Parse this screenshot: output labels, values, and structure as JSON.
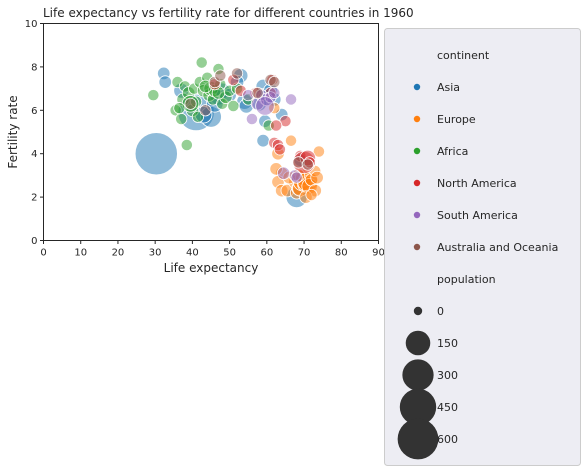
{
  "chart_data": {
    "type": "scatter",
    "title": "Life expectancy vs fertility rate for different countries in 1960",
    "xlabel": "Life expectancy",
    "ylabel": "Fertility rate",
    "xlim": [
      0,
      90
    ],
    "ylim": [
      0,
      10
    ],
    "xticks": [
      "0",
      "10",
      "20",
      "30",
      "40",
      "50",
      "60",
      "70",
      "80",
      "90"
    ],
    "yticks": [
      "0",
      "2",
      "4",
      "6",
      "8",
      "10"
    ],
    "grid": false,
    "legend_placement": "outside-right",
    "legend": {
      "hue_title": "continent",
      "size_title": "population",
      "size_entries": [
        {
          "label": "0",
          "value": 0
        },
        {
          "label": "150",
          "value": 150
        },
        {
          "label": "300",
          "value": 300
        },
        {
          "label": "450",
          "value": 450
        },
        {
          "label": "600",
          "value": 600
        }
      ]
    },
    "colors": {
      "Asia": "#1f77b4",
      "Europe": "#ff7f0e",
      "Africa": "#2ca02c",
      "North America": "#d62728",
      "South America": "#9467bd",
      "Australia and Oceania": "#8c564b"
    },
    "series": [
      {
        "name": "Asia",
        "points": [
          {
            "x": 30.3,
            "y": 4.0,
            "size": 660
          },
          {
            "x": 41.0,
            "y": 5.9,
            "size": 450
          },
          {
            "x": 32.3,
            "y": 7.7,
            "size": 10
          },
          {
            "x": 32.7,
            "y": 7.3,
            "size": 10
          },
          {
            "x": 45.0,
            "y": 5.7,
            "size": 90
          },
          {
            "x": 43.0,
            "y": 5.8,
            "size": 40
          },
          {
            "x": 47.0,
            "y": 6.6,
            "size": 30
          },
          {
            "x": 53.0,
            "y": 7.6,
            "size": 20
          },
          {
            "x": 54.0,
            "y": 6.4,
            "size": 30
          },
          {
            "x": 54.5,
            "y": 6.2,
            "size": 20
          },
          {
            "x": 58.0,
            "y": 6.3,
            "size": 20
          },
          {
            "x": 59.0,
            "y": 7.1,
            "size": 20
          },
          {
            "x": 59.0,
            "y": 6.7,
            "size": 15
          },
          {
            "x": 60.0,
            "y": 6.6,
            "size": 40
          },
          {
            "x": 59.5,
            "y": 5.5,
            "size": 10
          },
          {
            "x": 59.0,
            "y": 4.6,
            "size": 10
          },
          {
            "x": 61.0,
            "y": 6.9,
            "size": 20
          },
          {
            "x": 64.0,
            "y": 5.8,
            "size": 10
          },
          {
            "x": 68.0,
            "y": 2.0,
            "size": 94
          },
          {
            "x": 69.0,
            "y": 3.7,
            "size": 10
          },
          {
            "x": 62.0,
            "y": 6.5,
            "size": 15
          },
          {
            "x": 48.0,
            "y": 6.9,
            "size": 30
          },
          {
            "x": 50.0,
            "y": 6.7,
            "size": 15
          },
          {
            "x": 52.0,
            "y": 7.3,
            "size": 15
          },
          {
            "x": 46.0,
            "y": 6.3,
            "size": 40
          },
          {
            "x": 37.0,
            "y": 6.9,
            "size": 25
          }
        ]
      },
      {
        "name": "Europe",
        "points": [
          {
            "x": 64.0,
            "y": 3.1,
            "size": 10
          },
          {
            "x": 62.5,
            "y": 3.3,
            "size": 10
          },
          {
            "x": 63.0,
            "y": 2.7,
            "size": 10
          },
          {
            "x": 64.0,
            "y": 2.3,
            "size": 10
          },
          {
            "x": 65.5,
            "y": 2.3,
            "size": 10
          },
          {
            "x": 66.5,
            "y": 4.6,
            "size": 5
          },
          {
            "x": 67.5,
            "y": 2.7,
            "size": 10
          },
          {
            "x": 68.0,
            "y": 2.2,
            "size": 10
          },
          {
            "x": 68.5,
            "y": 2.4,
            "size": 15
          },
          {
            "x": 69.0,
            "y": 2.4,
            "size": 30
          },
          {
            "x": 69.5,
            "y": 2.7,
            "size": 50
          },
          {
            "x": 70.0,
            "y": 2.9,
            "size": 40
          },
          {
            "x": 70.5,
            "y": 2.6,
            "size": 40
          },
          {
            "x": 71.0,
            "y": 2.7,
            "size": 80
          },
          {
            "x": 71.5,
            "y": 2.5,
            "size": 30
          },
          {
            "x": 72.0,
            "y": 2.8,
            "size": 10
          },
          {
            "x": 73.0,
            "y": 3.2,
            "size": 5
          },
          {
            "x": 73.5,
            "y": 2.9,
            "size": 10
          },
          {
            "x": 74.0,
            "y": 4.1,
            "size": 5
          },
          {
            "x": 73.0,
            "y": 2.3,
            "size": 10
          },
          {
            "x": 70.5,
            "y": 2.0,
            "size": 10
          },
          {
            "x": 63.0,
            "y": 4.0,
            "size": 10
          },
          {
            "x": 62.0,
            "y": 6.1,
            "size": 5
          },
          {
            "x": 66.0,
            "y": 2.9,
            "size": 10
          },
          {
            "x": 68.5,
            "y": 3.0,
            "size": 10
          },
          {
            "x": 72.0,
            "y": 2.1,
            "size": 5
          }
        ]
      },
      {
        "name": "Africa",
        "points": [
          {
            "x": 29.5,
            "y": 6.7,
            "size": 5
          },
          {
            "x": 35.5,
            "y": 6.0,
            "size": 5
          },
          {
            "x": 36.0,
            "y": 7.3,
            "size": 5
          },
          {
            "x": 37.0,
            "y": 5.6,
            "size": 5
          },
          {
            "x": 37.5,
            "y": 6.5,
            "size": 10
          },
          {
            "x": 38.0,
            "y": 7.1,
            "size": 5
          },
          {
            "x": 38.5,
            "y": 4.4,
            "size": 5
          },
          {
            "x": 39.0,
            "y": 6.8,
            "size": 10
          },
          {
            "x": 40.0,
            "y": 6.0,
            "size": 10
          },
          {
            "x": 40.5,
            "y": 7.0,
            "size": 5
          },
          {
            "x": 41.0,
            "y": 6.4,
            "size": 5
          },
          {
            "x": 42.0,
            "y": 7.3,
            "size": 5
          },
          {
            "x": 42.5,
            "y": 8.2,
            "size": 5
          },
          {
            "x": 43.0,
            "y": 6.9,
            "size": 10
          },
          {
            "x": 44.0,
            "y": 7.5,
            "size": 5
          },
          {
            "x": 44.5,
            "y": 6.7,
            "size": 10
          },
          {
            "x": 45.0,
            "y": 7.0,
            "size": 20
          },
          {
            "x": 45.5,
            "y": 6.5,
            "size": 5
          },
          {
            "x": 46.0,
            "y": 6.9,
            "size": 10
          },
          {
            "x": 47.0,
            "y": 7.9,
            "size": 5
          },
          {
            "x": 47.5,
            "y": 7.2,
            "size": 5
          },
          {
            "x": 48.0,
            "y": 6.3,
            "size": 5
          },
          {
            "x": 49.0,
            "y": 6.6,
            "size": 10
          },
          {
            "x": 50.0,
            "y": 6.9,
            "size": 5
          },
          {
            "x": 51.0,
            "y": 6.2,
            "size": 5
          },
          {
            "x": 52.0,
            "y": 7.0,
            "size": 5
          },
          {
            "x": 60.5,
            "y": 5.3,
            "size": 5
          },
          {
            "x": 55.0,
            "y": 6.5,
            "size": 5
          },
          {
            "x": 39.5,
            "y": 6.3,
            "size": 40
          },
          {
            "x": 43.5,
            "y": 7.1,
            "size": 10
          },
          {
            "x": 41.5,
            "y": 5.7,
            "size": 5
          },
          {
            "x": 36.5,
            "y": 6.1,
            "size": 5
          },
          {
            "x": 47.0,
            "y": 6.8,
            "size": 10
          }
        ]
      },
      {
        "name": "North America",
        "points": [
          {
            "x": 46.0,
            "y": 7.2,
            "size": 5
          },
          {
            "x": 51.0,
            "y": 7.4,
            "size": 5
          },
          {
            "x": 53.0,
            "y": 6.9,
            "size": 5
          },
          {
            "x": 57.0,
            "y": 6.8,
            "size": 5
          },
          {
            "x": 61.0,
            "y": 6.8,
            "size": 5
          },
          {
            "x": 62.0,
            "y": 4.5,
            "size": 5
          },
          {
            "x": 63.0,
            "y": 4.4,
            "size": 5
          },
          {
            "x": 63.5,
            "y": 4.2,
            "size": 5
          },
          {
            "x": 65.0,
            "y": 5.5,
            "size": 5
          },
          {
            "x": 62.5,
            "y": 5.3,
            "size": 5
          },
          {
            "x": 69.0,
            "y": 3.9,
            "size": 5
          },
          {
            "x": 70.0,
            "y": 3.6,
            "size": 110
          },
          {
            "x": 71.0,
            "y": 3.8,
            "size": 30
          },
          {
            "x": 71.5,
            "y": 3.6,
            "size": 5
          },
          {
            "x": 61.5,
            "y": 7.4,
            "size": 5
          }
        ]
      },
      {
        "name": "South America",
        "points": [
          {
            "x": 56.0,
            "y": 5.6,
            "size": 5
          },
          {
            "x": 57.5,
            "y": 6.3,
            "size": 10
          },
          {
            "x": 58.5,
            "y": 6.7,
            "size": 5
          },
          {
            "x": 60.0,
            "y": 6.5,
            "size": 10
          },
          {
            "x": 61.0,
            "y": 6.6,
            "size": 5
          },
          {
            "x": 62.0,
            "y": 6.8,
            "size": 5
          },
          {
            "x": 64.5,
            "y": 3.1,
            "size": 10
          },
          {
            "x": 66.5,
            "y": 6.5,
            "size": 5
          },
          {
            "x": 67.5,
            "y": 3.0,
            "size": 5
          },
          {
            "x": 68.0,
            "y": 2.9,
            "size": 5
          },
          {
            "x": 55.0,
            "y": 6.7,
            "size": 5
          },
          {
            "x": 59.5,
            "y": 6.2,
            "size": 60
          }
        ]
      },
      {
        "name": "Australia and Oceania",
        "points": [
          {
            "x": 39.5,
            "y": 6.3,
            "size": 5
          },
          {
            "x": 43.5,
            "y": 6.0,
            "size": 5
          },
          {
            "x": 46.0,
            "y": 7.3,
            "size": 5
          },
          {
            "x": 47.5,
            "y": 7.6,
            "size": 5
          },
          {
            "x": 52.0,
            "y": 7.7,
            "size": 5
          },
          {
            "x": 57.5,
            "y": 6.8,
            "size": 5
          },
          {
            "x": 61.0,
            "y": 7.4,
            "size": 5
          },
          {
            "x": 62.0,
            "y": 7.3,
            "size": 5
          },
          {
            "x": 68.5,
            "y": 3.6,
            "size": 5
          },
          {
            "x": 71.0,
            "y": 3.5,
            "size": 5
          }
        ]
      }
    ]
  }
}
